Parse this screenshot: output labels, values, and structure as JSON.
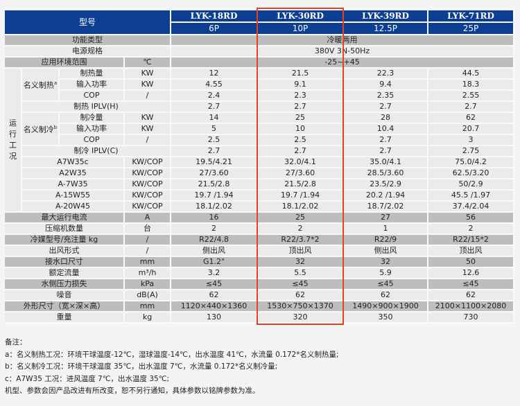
{
  "header": {
    "label": "型号",
    "models": [
      {
        "name": "LYK-18RD",
        "hp": "6P"
      },
      {
        "name": "LYK-30RD",
        "hp": "10P"
      },
      {
        "name": "LYK-39RD",
        "hp": "12.5P"
      },
      {
        "name": "LYK-71RD",
        "hp": "25P"
      }
    ]
  },
  "groups": {
    "operating": "运行工况",
    "heating": "名义制热",
    "heating_sup": "a",
    "cooling": "名义制冷",
    "cooling_sup": "b"
  },
  "highlighted_model": "LYK-30RD",
  "colors": {
    "header": "#0c3e94",
    "highlight_border": "#e8401c",
    "row_dark": "#bdbdbd",
    "row_light": "#ebebeb"
  },
  "rows": [
    {
      "label": "功能类型",
      "value": "冷暖两用"
    },
    {
      "label": "电源规格",
      "value": "380V 3N-50Hz"
    },
    {
      "label": "应用环境范围",
      "unit": "℃",
      "value": "-25~+45"
    },
    {
      "label": "制热量",
      "unit": "KW",
      "values": [
        "12",
        "21.5",
        "22.3",
        "44.5"
      ]
    },
    {
      "label": "输入功率",
      "unit": "KW",
      "values": [
        "4.55",
        "9.1",
        "9.4",
        "18.3"
      ]
    },
    {
      "label": "COP",
      "unit": "/",
      "values": [
        "2.4",
        "2.3",
        "2.35",
        "2.55"
      ]
    },
    {
      "label": "制热 IPLV(H)",
      "values": [
        "2.7",
        "2.7",
        "2.7",
        "2.7"
      ]
    },
    {
      "label": "制冷量",
      "unit": "KW",
      "values": [
        "14",
        "25",
        "28",
        "62"
      ]
    },
    {
      "label": "输入功率",
      "unit": "KW",
      "values": [
        "5",
        "10",
        "10.4",
        "20.7"
      ]
    },
    {
      "label": "COP",
      "unit": "/",
      "values": [
        "2.5",
        "2.5",
        "2.7",
        "3"
      ]
    },
    {
      "label": "制冷 IPLV(C)",
      "values": [
        "2.7",
        "2.7",
        "2.7",
        "2.75"
      ]
    },
    {
      "label": "A7W35c",
      "unit": "KW/COP",
      "values": [
        "19.5/4.21",
        "32.0/4.1",
        "35.0/4.1",
        "75.0/4.2"
      ]
    },
    {
      "label": "A2W35",
      "unit": "KW/COP",
      "values": [
        "27/3.60",
        "27/3.60",
        "28.5/3.60",
        "62.5/3.20"
      ]
    },
    {
      "label": "A-7W35",
      "unit": "KW/COP",
      "values": [
        "21.5/2.8",
        "21.5/2.8",
        "23.5/2.9",
        "50/2.9"
      ]
    },
    {
      "label": "A-15W55",
      "unit": "KW/COP",
      "values": [
        "19.7 /1.94",
        "19.7 /1.94",
        "20.2 /1.94",
        "45.5 /1.97"
      ]
    },
    {
      "label": "A-20W45",
      "unit": "KW/COP",
      "values": [
        "18.1/2.02",
        "18.1/2.02",
        "18.7/2.02",
        "37.4/2.04"
      ]
    },
    {
      "label": "最大运行电流",
      "unit": "A",
      "values": [
        "16",
        "25",
        "27",
        "56"
      ]
    },
    {
      "label": "压缩机数量",
      "unit": "台",
      "values": [
        "2",
        "2",
        "1",
        "2"
      ]
    },
    {
      "label": "冷媒型号/充注量 kg",
      "unit": "/",
      "values": [
        "R22/4.8",
        "R22/3.7*2",
        "R22/9",
        "R22/15*2"
      ]
    },
    {
      "label": "出风形式",
      "unit": "/",
      "values": [
        "侧出风",
        "顶出风",
        "侧出风",
        "顶出风"
      ]
    },
    {
      "label": "接水口尺寸",
      "unit": "mm",
      "values": [
        "G1.2\"",
        "32",
        "32",
        "50"
      ]
    },
    {
      "label": "额定流量",
      "unit": "m³/h",
      "values": [
        "3.2",
        "5.5",
        "5.9",
        "12.6"
      ]
    },
    {
      "label": "水侧压力损失",
      "unit": "kPa",
      "values": [
        "≤45",
        "≤45",
        "≤45",
        "≤45"
      ]
    },
    {
      "label": "噪音",
      "unit": "dB(A)",
      "values": [
        "62",
        "62",
        "62",
        "62"
      ]
    },
    {
      "label": "外形尺寸（宽×深×高）",
      "unit": "mm",
      "values": [
        "1120×440×1360",
        "1530×750×1370",
        "1490×900×1900",
        "2100×1100×2080"
      ]
    },
    {
      "label": "重量",
      "unit": "kg",
      "values": [
        "130",
        "320",
        "350",
        "730"
      ]
    }
  ],
  "notes": {
    "title": "备注：",
    "lines": [
      "a：名义制热工况：环境干球温度-12℃，湿球温度-14℃，出水温度 41℃，水流量 0.172*名义制热量;",
      "b：名义制冷工况：环境干球温度 35℃，出水温度 7℃，水流量 0.172*名义制冷量;",
      "c：A7W35 工况：进风温度 7℃，出水温度 35℃;",
      "机型、参数会因产品改进有所改变，恕不另行通知，具体参数以铭牌参数为准。"
    ]
  }
}
